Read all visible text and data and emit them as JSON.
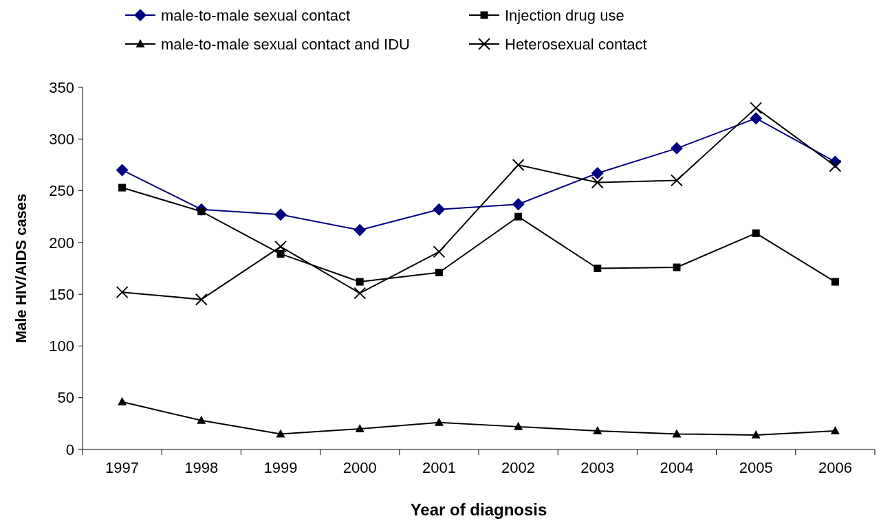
{
  "chart_data": {
    "type": "line",
    "xlabel": "Year of diagnosis",
    "ylabel": "Male HIV/AIDS cases",
    "categories": [
      "1997",
      "1998",
      "1999",
      "2000",
      "2001",
      "2002",
      "2003",
      "2004",
      "2005",
      "2006"
    ],
    "series": [
      {
        "name": "male-to-male sexual contact",
        "color": "#000080",
        "marker": "diamond",
        "values": [
          270,
          232,
          227,
          212,
          232,
          237,
          267,
          291,
          320,
          278
        ]
      },
      {
        "name": "Injection drug use",
        "color": "#000000",
        "marker": "square",
        "values": [
          253,
          230,
          189,
          162,
          171,
          225,
          175,
          176,
          209,
          162
        ]
      },
      {
        "name": "male-to-male sexual contact and IDU",
        "color": "#000000",
        "marker": "triangle",
        "values": [
          46,
          28,
          15,
          20,
          26,
          22,
          18,
          15,
          14,
          18
        ]
      },
      {
        "name": "Heterosexual contact",
        "color": "#000000",
        "marker": "cross",
        "values": [
          152,
          145,
          196,
          151,
          191,
          275,
          258,
          260,
          330,
          274
        ]
      }
    ],
    "ylim": [
      0,
      350
    ],
    "yticks": [
      0,
      50,
      100,
      150,
      200,
      250,
      300,
      350
    ],
    "grid": false,
    "legend": "top",
    "line_style": "solid"
  }
}
